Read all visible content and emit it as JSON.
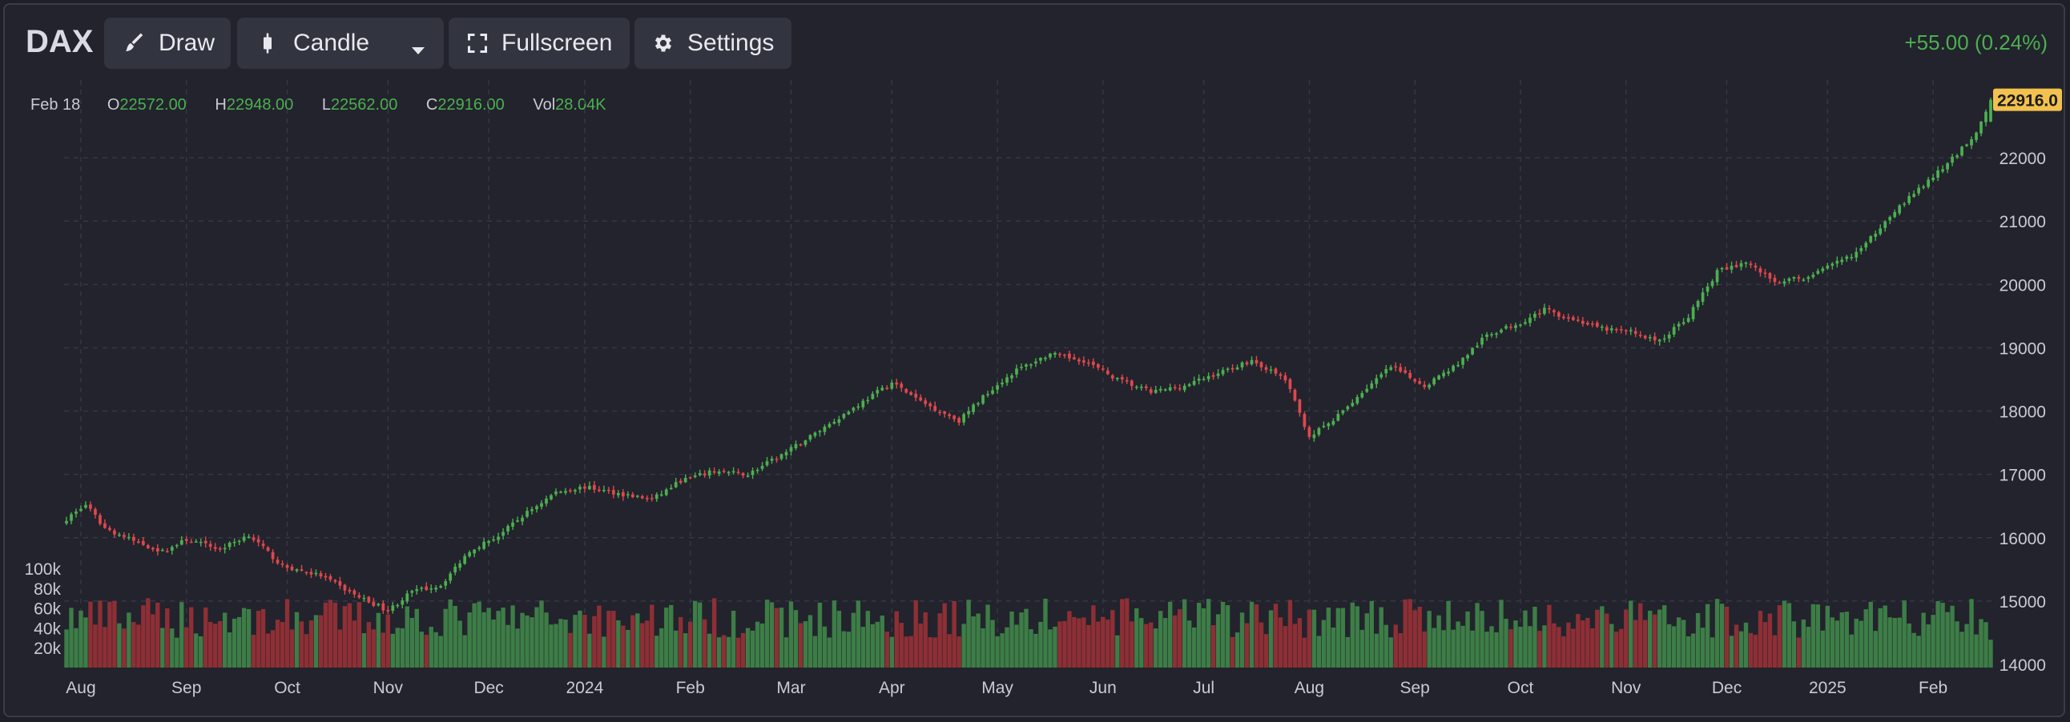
{
  "toolbar": {
    "symbol": "DAX",
    "draw_label": "Draw",
    "chart_type_label": "Candle",
    "fullscreen_label": "Fullscreen",
    "settings_label": "Settings",
    "change_text": "+55.00 (0.24%)"
  },
  "legend": {
    "date": "Feb 18",
    "open_key": "O",
    "open": "22572.00",
    "high_key": "H",
    "high": "22948.00",
    "low_key": "L",
    "low": "22562.00",
    "close_key": "C",
    "close": "22916.00",
    "vol_key": "Vol",
    "vol": "28.04K"
  },
  "price_tag": "22916.0",
  "colors": {
    "up": "#4caf50",
    "down": "#e0474c",
    "vol_up": "#3d7d47",
    "vol_down": "#8e2f35",
    "tag": "#f2c14e"
  },
  "chart_data": {
    "type": "candlestick",
    "y_ticks": [
      14000,
      15000,
      16000,
      17000,
      18000,
      19000,
      20000,
      21000,
      22000
    ],
    "ylim": [
      14000,
      23000
    ],
    "volume_ticks": [
      "20k",
      "40k",
      "60k",
      "80k",
      "100k"
    ],
    "volume_ylim": [
      0,
      100000
    ],
    "x_labels": [
      "Aug",
      "Sep",
      "Oct",
      "Nov",
      "Dec",
      "2024",
      "Feb",
      "Mar",
      "Apr",
      "May",
      "Jun",
      "Jul",
      "Aug",
      "Sep",
      "Oct",
      "Nov",
      "Dec",
      "2025",
      "Feb"
    ],
    "x_label_index": [
      3,
      25,
      46,
      67,
      88,
      108,
      130,
      151,
      172,
      194,
      216,
      237,
      259,
      281,
      303,
      325,
      346,
      367,
      389
    ],
    "close_anchors": [
      [
        0,
        16300
      ],
      [
        4,
        16520
      ],
      [
        8,
        16150
      ],
      [
        14,
        15950
      ],
      [
        20,
        15780
      ],
      [
        25,
        15970
      ],
      [
        32,
        15820
      ],
      [
        38,
        16050
      ],
      [
        45,
        15550
      ],
      [
        53,
        15400
      ],
      [
        60,
        15100
      ],
      [
        67,
        14850
      ],
      [
        72,
        15150
      ],
      [
        78,
        15250
      ],
      [
        84,
        15800
      ],
      [
        90,
        16030
      ],
      [
        96,
        16400
      ],
      [
        102,
        16720
      ],
      [
        108,
        16800
      ],
      [
        115,
        16700
      ],
      [
        122,
        16600
      ],
      [
        128,
        16900
      ],
      [
        135,
        17050
      ],
      [
        142,
        17000
      ],
      [
        150,
        17350
      ],
      [
        158,
        17750
      ],
      [
        165,
        18100
      ],
      [
        172,
        18450
      ],
      [
        178,
        18150
      ],
      [
        186,
        17850
      ],
      [
        192,
        18300
      ],
      [
        198,
        18650
      ],
      [
        205,
        18900
      ],
      [
        212,
        18800
      ],
      [
        219,
        18500
      ],
      [
        226,
        18300
      ],
      [
        233,
        18400
      ],
      [
        240,
        18600
      ],
      [
        247,
        18800
      ],
      [
        254,
        18500
      ],
      [
        259,
        17600
      ],
      [
        264,
        17850
      ],
      [
        270,
        18300
      ],
      [
        276,
        18700
      ],
      [
        283,
        18400
      ],
      [
        290,
        18750
      ],
      [
        296,
        19200
      ],
      [
        303,
        19400
      ],
      [
        308,
        19600
      ],
      [
        314,
        19450
      ],
      [
        320,
        19300
      ],
      [
        326,
        19250
      ],
      [
        332,
        19100
      ],
      [
        338,
        19500
      ],
      [
        344,
        20200
      ],
      [
        350,
        20350
      ],
      [
        356,
        20050
      ],
      [
        362,
        20100
      ],
      [
        368,
        20300
      ],
      [
        374,
        20550
      ],
      [
        380,
        21100
      ],
      [
        386,
        21500
      ],
      [
        392,
        21900
      ],
      [
        398,
        22400
      ],
      [
        401,
        22916
      ]
    ],
    "last_bar": {
      "open": 22572,
      "high": 22948,
      "low": 22562,
      "close": 22916,
      "volume": 28040
    }
  }
}
